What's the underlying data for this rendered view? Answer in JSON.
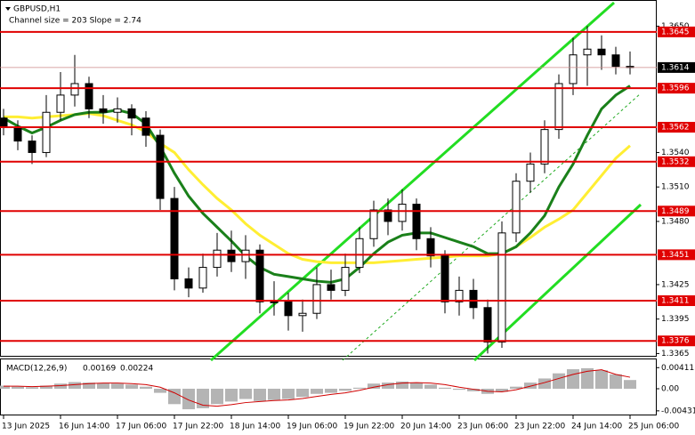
{
  "chart_data": [
    {
      "type": "candlestick",
      "title": "GBPUSD,H1",
      "annotation": "Channel size = 203 Slope = 2.74",
      "categories": [
        "13 Jun 2025",
        null,
        null,
        null,
        "16 Jun 14:00",
        null,
        null,
        null,
        "17 Jun 06:00",
        null,
        null,
        null,
        "17 Jun 22:00",
        null,
        null,
        null,
        "18 Jun 14:00",
        null,
        null,
        null,
        "19 Jun 06:00",
        null,
        null,
        null,
        "19 Jun 22:00",
        null,
        null,
        null,
        "20 Jun 14:00",
        null,
        null,
        null,
        "23 Jun 06:00",
        null,
        null,
        null,
        "23 Jun 22:00",
        null,
        null,
        null,
        "24 Jun 14:00",
        null,
        null,
        null,
        "25 Jun 06:00"
      ],
      "open": [
        1.357,
        1.3562,
        1.355,
        1.354,
        1.3575,
        1.359,
        1.36,
        1.3578,
        1.3575,
        1.3578,
        1.357,
        1.3555,
        1.35,
        1.343,
        1.3422,
        1.344,
        1.3455,
        1.3445,
        1.3455,
        1.341,
        1.341,
        1.3398,
        1.34,
        1.3425,
        1.342,
        1.344,
        1.3465,
        1.349,
        1.348,
        1.3495,
        1.3465,
        1.345,
        1.341,
        1.342,
        1.3405,
        1.3375,
        1.347,
        1.3515,
        1.353,
        1.356,
        1.36,
        1.3625,
        1.363,
        1.3625,
        1.3615
      ],
      "high": [
        1.3578,
        1.3568,
        1.3555,
        1.359,
        1.361,
        1.3625,
        1.3606,
        1.359,
        1.3588,
        1.3582,
        1.3576,
        1.356,
        1.351,
        1.344,
        1.3452,
        1.347,
        1.3472,
        1.3468,
        1.346,
        1.3428,
        1.3418,
        1.3412,
        1.344,
        1.3438,
        1.3452,
        1.3475,
        1.3498,
        1.35,
        1.3508,
        1.35,
        1.3475,
        1.3455,
        1.3432,
        1.343,
        1.3412,
        1.348,
        1.3522,
        1.354,
        1.3568,
        1.3608,
        1.364,
        1.365,
        1.3642,
        1.3632,
        1.3628
      ],
      "low": [
        1.3555,
        1.3542,
        1.353,
        1.3536,
        1.3568,
        1.358,
        1.357,
        1.3565,
        1.3566,
        1.3555,
        1.3545,
        1.349,
        1.342,
        1.3414,
        1.3418,
        1.3432,
        1.3436,
        1.343,
        1.34,
        1.3398,
        1.3385,
        1.3384,
        1.3395,
        1.3412,
        1.3415,
        1.3435,
        1.3458,
        1.3468,
        1.3472,
        1.3455,
        1.344,
        1.34,
        1.3398,
        1.3395,
        1.3365,
        1.337,
        1.3462,
        1.3505,
        1.3522,
        1.3552,
        1.359,
        1.3598,
        1.3612,
        1.3608,
        1.3608
      ],
      "close": [
        1.3562,
        1.355,
        1.354,
        1.3575,
        1.359,
        1.36,
        1.3578,
        1.3575,
        1.3578,
        1.357,
        1.3555,
        1.35,
        1.343,
        1.3422,
        1.344,
        1.3455,
        1.3445,
        1.3455,
        1.341,
        1.341,
        1.3398,
        1.34,
        1.3425,
        1.342,
        1.344,
        1.3465,
        1.349,
        1.348,
        1.3495,
        1.3465,
        1.345,
        1.341,
        1.342,
        1.3405,
        1.3375,
        1.347,
        1.3515,
        1.353,
        1.356,
        1.36,
        1.3625,
        1.363,
        1.3625,
        1.3615,
        1.3614
      ],
      "up_color": "#ffffff",
      "down_color": "#000000",
      "overlays": [
        {
          "color": "#ffee33",
          "values": [
            1.3571,
            1.3571,
            1.357,
            1.3571,
            1.3572,
            1.3573,
            1.3574,
            1.3572,
            1.3568,
            1.3564,
            1.3558,
            1.3548,
            1.354,
            1.3525,
            1.3512,
            1.35,
            1.349,
            1.3478,
            1.3468,
            1.346,
            1.3452,
            1.3447,
            1.3445,
            1.3444,
            1.3444,
            1.3444,
            1.3444,
            1.3445,
            1.3446,
            1.3447,
            1.3448,
            1.3449,
            1.345,
            1.345,
            1.345,
            1.3452,
            1.3458,
            1.3466,
            1.3475,
            1.3482,
            1.349,
            1.3505,
            1.352,
            1.3535,
            1.3546
          ]
        },
        {
          "color": "#1a801a",
          "values": [
            1.357,
            1.3563,
            1.3557,
            1.3562,
            1.3568,
            1.3573,
            1.3575,
            1.3575,
            1.3577,
            1.3574,
            1.3565,
            1.3545,
            1.3522,
            1.3502,
            1.3487,
            1.3475,
            1.3463,
            1.345,
            1.344,
            1.3434,
            1.3432,
            1.343,
            1.3428,
            1.3427,
            1.343,
            1.344,
            1.3452,
            1.3462,
            1.3468,
            1.347,
            1.347,
            1.3466,
            1.3462,
            1.3458,
            1.3452,
            1.3452,
            1.3458,
            1.347,
            1.3485,
            1.351,
            1.353,
            1.3555,
            1.3578,
            1.359,
            1.3598
          ]
        }
      ],
      "levels": [
        1.3645,
        1.3596,
        1.3562,
        1.3532,
        1.3489,
        1.3451,
        1.3411,
        1.3376
      ],
      "level_color": "#e00000",
      "last_price": 1.3614,
      "ylim": [
        1.3363,
        1.3672
      ],
      "yticks": [
        {
          "value": 1.365,
          "label": "1.3650"
        },
        {
          "value": 1.354,
          "label": "1.3540"
        },
        {
          "value": 1.351,
          "label": "1.3510"
        },
        {
          "value": 1.348,
          "label": "1.3480"
        },
        1.3425,
        1.3395,
        1.3365
      ]
    },
    {
      "type": "macd",
      "title": "MACD(12,26,9)",
      "main_value": 0.00169,
      "signal_value": 0.00224,
      "values": [
        0.0006,
        0.0004,
        0.0003,
        0.0006,
        0.001,
        0.0013,
        0.0012,
        0.0011,
        0.001,
        0.0008,
        0.0004,
        -0.0008,
        -0.003,
        -0.004,
        -0.0038,
        -0.003,
        -0.0025,
        -0.002,
        -0.0024,
        -0.0022,
        -0.002,
        -0.0016,
        -0.001,
        -0.0008,
        -0.0004,
        0.0002,
        0.001,
        0.0012,
        0.0014,
        0.0012,
        0.0008,
        0.0002,
        -0.0002,
        -0.0005,
        -0.001,
        -0.0006,
        0.0004,
        0.0012,
        0.002,
        0.003,
        0.0038,
        0.004,
        0.0036,
        0.0028,
        0.0017
      ],
      "color": "#b4b4b4",
      "signal": [
        0.0005,
        0.0005,
        0.0004,
        0.0005,
        0.0006,
        0.0008,
        0.001,
        0.0011,
        0.0011,
        0.001,
        0.0008,
        0.0003,
        -0.0008,
        -0.0022,
        -0.0032,
        -0.0034,
        -0.0031,
        -0.0027,
        -0.0025,
        -0.0023,
        -0.0022,
        -0.0019,
        -0.0015,
        -0.0011,
        -0.0008,
        -0.0003,
        0.0003,
        0.0008,
        0.0011,
        0.0012,
        0.0011,
        0.0008,
        0.0003,
        -0.0001,
        -0.0005,
        -0.0006,
        -0.0002,
        0.0005,
        0.0012,
        0.002,
        0.0028,
        0.0034,
        0.0037,
        0.0028,
        0.00224
      ],
      "signal_color": "#d00000",
      "ylim": [
        -0.00503,
        0.00572
      ],
      "yticks": [
        0.00411,
        {
          "value": 0,
          "label": "0.00"
        },
        -0.00431
      ]
    }
  ]
}
